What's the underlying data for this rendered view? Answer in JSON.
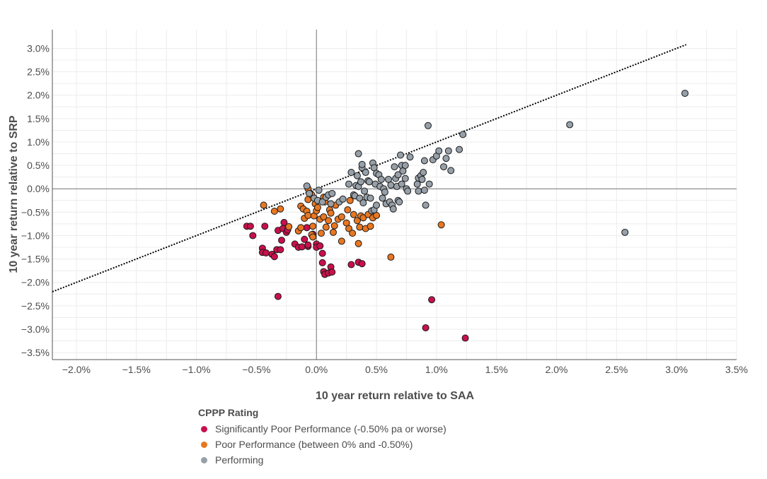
{
  "chart_data": {
    "type": "scatter",
    "xlabel": "10 year return relative to SAA",
    "ylabel": "10 year return relative to SRP",
    "xlim": [
      -2.2,
      3.5
    ],
    "ylim": [
      -3.65,
      3.4
    ],
    "x_ticks": [
      -2.0,
      -1.5,
      -1.0,
      -0.5,
      0.0,
      0.5,
      1.0,
      1.5,
      2.0,
      2.5,
      3.0,
      3.5
    ],
    "x_tick_labels": [
      "−2.0%",
      "−1.5%",
      "−1.0%",
      "−0.5%",
      "0.0%",
      "0.5%",
      "1.0%",
      "1.5%",
      "2.0%",
      "2.5%",
      "3.0%",
      "3.5%"
    ],
    "y_ticks": [
      3.0,
      2.5,
      2.0,
      1.5,
      1.0,
      0.5,
      0.0,
      -0.5,
      -1.0,
      -1.5,
      -2.0,
      -2.5,
      -3.0,
      -3.5
    ],
    "y_tick_labels": [
      "3.0%",
      "2.5%",
      "2.0%",
      "1.5%",
      "1.0%",
      "0.5%",
      "0.0%",
      "−0.5%",
      "−1.0%",
      "−1.5%",
      "−2.0%",
      "−2.5%",
      "−3.0%",
      "−3.5%"
    ],
    "grid": true,
    "reference_line": {
      "style": "dotted",
      "x": [
        -2.2,
        3.08
      ],
      "y": [
        -2.2,
        3.08
      ]
    },
    "legend": {
      "title": "CPPP Rating",
      "placement": "bottom",
      "entries": [
        {
          "name": "Significantly Poor Performance (-0.50% pa or worse)",
          "color": "#c8104c"
        },
        {
          "name": "Poor Performance (between 0% and -0.50%)",
          "color": "#e87722"
        },
        {
          "name": "Performing",
          "color": "#97a0a8"
        }
      ]
    },
    "series": [
      {
        "name": "Significantly Poor Performance (-0.50% pa or worse)",
        "color": "#c8104c",
        "points": [
          [
            -0.58,
            -0.8
          ],
          [
            -0.55,
            -0.8
          ],
          [
            -0.53,
            -1.0
          ],
          [
            -0.45,
            -1.27
          ],
          [
            -0.45,
            -1.36
          ],
          [
            -0.42,
            -1.37
          ],
          [
            -0.43,
            -0.8
          ],
          [
            -0.37,
            -1.4
          ],
          [
            -0.35,
            -1.45
          ],
          [
            -0.33,
            -1.3
          ],
          [
            -0.32,
            -0.89
          ],
          [
            -0.3,
            -1.3
          ],
          [
            -0.29,
            -1.1
          ],
          [
            -0.28,
            -0.85
          ],
          [
            -0.27,
            -0.72
          ],
          [
            -0.25,
            -0.93
          ],
          [
            -0.24,
            -0.88
          ],
          [
            -0.18,
            -1.18
          ],
          [
            -0.15,
            -1.25
          ],
          [
            -0.12,
            -1.24
          ],
          [
            -0.07,
            -1.23
          ],
          [
            -0.1,
            -1.08
          ],
          [
            -0.08,
            -0.83
          ],
          [
            -0.07,
            -1.2
          ],
          [
            -0.03,
            -0.97
          ],
          [
            0.0,
            -1.18
          ],
          [
            0.0,
            -1.25
          ],
          [
            0.03,
            -1.22
          ],
          [
            0.05,
            -1.38
          ],
          [
            0.05,
            -1.58
          ],
          [
            0.06,
            -1.77
          ],
          [
            0.07,
            -1.83
          ],
          [
            0.1,
            -1.8
          ],
          [
            0.12,
            -1.67
          ],
          [
            0.13,
            -1.78
          ],
          [
            0.29,
            -1.62
          ],
          [
            0.35,
            -1.57
          ],
          [
            0.38,
            -1.6
          ],
          [
            -0.32,
            -2.3
          ],
          [
            0.91,
            -2.97
          ],
          [
            0.96,
            -2.37
          ],
          [
            1.24,
            -3.19
          ]
        ]
      },
      {
        "name": "Poor Performance (between 0% and -0.50%)",
        "color": "#e87722",
        "points": [
          [
            -0.44,
            -0.35
          ],
          [
            -0.35,
            -0.48
          ],
          [
            -0.3,
            -0.43
          ],
          [
            -0.23,
            -0.81
          ],
          [
            -0.15,
            -0.9
          ],
          [
            -0.13,
            -0.83
          ],
          [
            -0.13,
            -0.37
          ],
          [
            -0.11,
            -0.43
          ],
          [
            -0.1,
            -0.63
          ],
          [
            -0.08,
            -0.48
          ],
          [
            -0.07,
            -0.23
          ],
          [
            -0.07,
            -0.57
          ],
          [
            -0.05,
            -0.1
          ],
          [
            -0.04,
            -0.98
          ],
          [
            -0.03,
            -1.03
          ],
          [
            -0.03,
            -0.8
          ],
          [
            -0.02,
            -0.58
          ],
          [
            -0.01,
            -0.32
          ],
          [
            0.0,
            -0.47
          ],
          [
            0.01,
            -0.4
          ],
          [
            0.03,
            -0.65
          ],
          [
            0.04,
            -0.95
          ],
          [
            0.06,
            -0.6
          ],
          [
            0.06,
            -0.18
          ],
          [
            0.07,
            -0.28
          ],
          [
            0.08,
            -0.82
          ],
          [
            0.1,
            -0.68
          ],
          [
            0.11,
            -0.45
          ],
          [
            0.12,
            -0.52
          ],
          [
            0.14,
            -0.93
          ],
          [
            0.15,
            -0.79
          ],
          [
            0.16,
            -0.35
          ],
          [
            0.18,
            -0.65
          ],
          [
            0.21,
            -0.6
          ],
          [
            0.21,
            -1.12
          ],
          [
            0.25,
            -0.73
          ],
          [
            0.26,
            -0.45
          ],
          [
            0.27,
            -0.85
          ],
          [
            0.28,
            -0.25
          ],
          [
            0.3,
            -0.95
          ],
          [
            0.31,
            -0.55
          ],
          [
            0.34,
            -0.68
          ],
          [
            0.35,
            -1.17
          ],
          [
            0.36,
            -0.82
          ],
          [
            0.37,
            -0.58
          ],
          [
            0.39,
            -0.62
          ],
          [
            0.41,
            -0.85
          ],
          [
            0.43,
            -0.55
          ],
          [
            0.45,
            -0.8
          ],
          [
            0.47,
            -0.62
          ],
          [
            0.5,
            -0.57
          ],
          [
            -0.07,
            0.0
          ],
          [
            -0.04,
            -0.13
          ],
          [
            0.62,
            -1.46
          ],
          [
            1.04,
            -0.77
          ]
        ]
      },
      {
        "name": "Performing",
        "color": "#97a0a8",
        "points": [
          [
            -0.08,
            0.06
          ],
          [
            -0.06,
            -0.1
          ],
          [
            -0.02,
            -0.2
          ],
          [
            0.01,
            -0.25
          ],
          [
            0.02,
            -0.03
          ],
          [
            0.05,
            -0.28
          ],
          [
            0.08,
            -0.18
          ],
          [
            0.1,
            -0.13
          ],
          [
            0.12,
            -0.32
          ],
          [
            0.13,
            -0.1
          ],
          [
            0.19,
            -0.28
          ],
          [
            0.22,
            -0.22
          ],
          [
            0.27,
            0.1
          ],
          [
            0.29,
            0.35
          ],
          [
            0.31,
            -0.13
          ],
          [
            0.32,
            -0.15
          ],
          [
            0.33,
            0.07
          ],
          [
            0.34,
            0.28
          ],
          [
            0.35,
            0.75
          ],
          [
            0.35,
            0.05
          ],
          [
            0.36,
            -0.2
          ],
          [
            0.37,
            0.15
          ],
          [
            0.38,
            0.45
          ],
          [
            0.38,
            0.52
          ],
          [
            0.39,
            -0.3
          ],
          [
            0.4,
            -0.05
          ],
          [
            0.41,
            0.35
          ],
          [
            0.42,
            -0.18
          ],
          [
            0.43,
            0.17
          ],
          [
            0.44,
            0.15
          ],
          [
            0.45,
            -0.2
          ],
          [
            0.46,
            -0.47
          ],
          [
            0.47,
            0.55
          ],
          [
            0.48,
            0.45
          ],
          [
            0.48,
            -0.45
          ],
          [
            0.49,
            0.1
          ],
          [
            0.5,
            0.33
          ],
          [
            0.5,
            -0.35
          ],
          [
            0.52,
            0.3
          ],
          [
            0.53,
            0.05
          ],
          [
            0.54,
            0.2
          ],
          [
            0.55,
            -0.2
          ],
          [
            0.56,
            0.0
          ],
          [
            0.57,
            -0.07
          ],
          [
            0.58,
            -0.32
          ],
          [
            0.6,
            0.2
          ],
          [
            0.61,
            -0.28
          ],
          [
            0.62,
            0.08
          ],
          [
            0.63,
            -0.35
          ],
          [
            0.64,
            -0.43
          ],
          [
            0.65,
            0.47
          ],
          [
            0.66,
            0.22
          ],
          [
            0.67,
            0.05
          ],
          [
            0.68,
            -0.25
          ],
          [
            0.68,
            0.3
          ],
          [
            0.69,
            -0.28
          ],
          [
            0.7,
            0.72
          ],
          [
            0.71,
            0.1
          ],
          [
            0.71,
            0.5
          ],
          [
            0.72,
            0.38
          ],
          [
            0.74,
            0.22
          ],
          [
            0.74,
            0.5
          ],
          [
            0.75,
            0.0
          ],
          [
            0.76,
            -0.05
          ],
          [
            0.78,
            0.68
          ],
          [
            0.84,
            0.1
          ],
          [
            0.85,
            0.23
          ],
          [
            0.85,
            -0.05
          ],
          [
            0.87,
            0.28
          ],
          [
            0.88,
            0.2
          ],
          [
            0.89,
            0.35
          ],
          [
            0.9,
            -0.03
          ],
          [
            0.9,
            0.6
          ],
          [
            0.91,
            -0.35
          ],
          [
            0.93,
            1.35
          ],
          [
            0.94,
            0.1
          ],
          [
            0.97,
            0.62
          ],
          [
            1.0,
            0.7
          ],
          [
            1.02,
            0.81
          ],
          [
            1.06,
            0.47
          ],
          [
            1.08,
            0.65
          ],
          [
            1.1,
            0.81
          ],
          [
            1.12,
            0.39
          ],
          [
            1.19,
            0.84
          ],
          [
            1.22,
            1.16
          ],
          [
            2.11,
            1.37
          ],
          [
            2.57,
            -0.93
          ],
          [
            3.07,
            2.04
          ]
        ]
      }
    ]
  }
}
